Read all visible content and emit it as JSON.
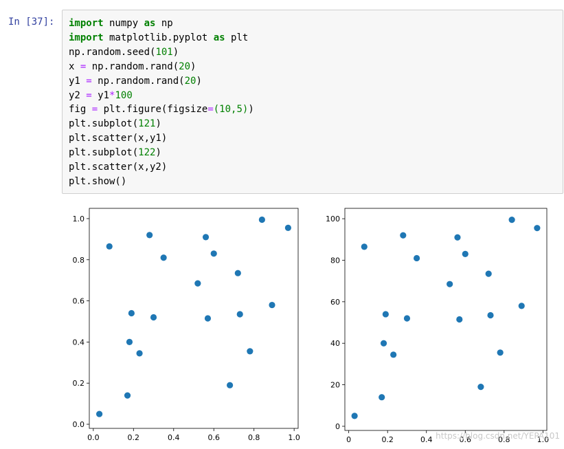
{
  "cell": {
    "prompt": "In [37]:",
    "code_lines": [
      [
        {
          "t": "import",
          "c": "kw"
        },
        {
          "t": " numpy ",
          "c": "plain"
        },
        {
          "t": "as",
          "c": "kw"
        },
        {
          "t": " np",
          "c": "plain"
        }
      ],
      [
        {
          "t": "import",
          "c": "kw"
        },
        {
          "t": " matplotlib.pyplot ",
          "c": "plain"
        },
        {
          "t": "as",
          "c": "kw"
        },
        {
          "t": " plt",
          "c": "plain"
        }
      ],
      [
        {
          "t": "np.random.seed(",
          "c": "plain"
        },
        {
          "t": "101",
          "c": "num"
        },
        {
          "t": ")",
          "c": "plain"
        }
      ],
      [
        {
          "t": "x ",
          "c": "plain"
        },
        {
          "t": "=",
          "c": "op"
        },
        {
          "t": " np.random.rand(",
          "c": "plain"
        },
        {
          "t": "20",
          "c": "num"
        },
        {
          "t": ")",
          "c": "plain"
        }
      ],
      [
        {
          "t": "y1 ",
          "c": "plain"
        },
        {
          "t": "=",
          "c": "op"
        },
        {
          "t": " np.random.rand(",
          "c": "plain"
        },
        {
          "t": "20",
          "c": "num"
        },
        {
          "t": ")",
          "c": "plain"
        }
      ],
      [
        {
          "t": "y2 ",
          "c": "plain"
        },
        {
          "t": "=",
          "c": "op"
        },
        {
          "t": " y1",
          "c": "plain"
        },
        {
          "t": "*",
          "c": "op"
        },
        {
          "t": "100",
          "c": "num"
        }
      ],
      [
        {
          "t": "fig ",
          "c": "plain"
        },
        {
          "t": "=",
          "c": "op"
        },
        {
          "t": " plt.figure(figsize",
          "c": "plain"
        },
        {
          "t": "=",
          "c": "op"
        },
        {
          "t": "(10,5)",
          "c": "num"
        },
        {
          "t": ")",
          "c": "plain"
        }
      ],
      [
        {
          "t": "plt.subplot(",
          "c": "plain"
        },
        {
          "t": "121",
          "c": "num"
        },
        {
          "t": ")",
          "c": "plain"
        }
      ],
      [
        {
          "t": "plt.scatter(x,y1)",
          "c": "plain"
        }
      ],
      [
        {
          "t": "plt.subplot(",
          "c": "plain"
        },
        {
          "t": "122",
          "c": "num"
        },
        {
          "t": ")",
          "c": "plain"
        }
      ],
      [
        {
          "t": "plt.scatter(x,y2)",
          "c": "plain"
        }
      ],
      [
        {
          "t": "plt.show()",
          "c": "plain"
        }
      ]
    ]
  },
  "colors": {
    "kw": "#008000",
    "plain": "#000000",
    "num": "#008000",
    "op": "#aa22ff",
    "marker": "#1f77b4",
    "prompt": "#303f9f"
  },
  "watermark": "https://blog.csdn.net/YEPA101",
  "chart_data": [
    {
      "type": "scatter",
      "title": "",
      "xlabel": "",
      "ylabel": "",
      "xlim": [
        -0.02,
        1.02
      ],
      "ylim": [
        -0.02,
        1.05
      ],
      "xticks": [
        0.0,
        0.2,
        0.4,
        0.6,
        0.8,
        1.0
      ],
      "xtick_labels": [
        "0.0",
        "0.2",
        "0.4",
        "0.6",
        "0.8",
        "1.0"
      ],
      "yticks": [
        0.0,
        0.2,
        0.4,
        0.6,
        0.8,
        1.0
      ],
      "ytick_labels": [
        "0.0",
        "0.2",
        "0.4",
        "0.6",
        "0.8",
        "1.0"
      ],
      "grid": false,
      "x": [
        0.03,
        0.08,
        0.17,
        0.18,
        0.19,
        0.23,
        0.28,
        0.3,
        0.35,
        0.52,
        0.56,
        0.57,
        0.6,
        0.68,
        0.72,
        0.73,
        0.78,
        0.84,
        0.89,
        0.97
      ],
      "y": [
        0.05,
        0.865,
        0.14,
        0.4,
        0.54,
        0.345,
        0.92,
        0.52,
        0.81,
        0.685,
        0.91,
        0.515,
        0.83,
        0.19,
        0.735,
        0.535,
        0.355,
        0.995,
        0.58,
        0.955
      ]
    },
    {
      "type": "scatter",
      "title": "",
      "xlabel": "",
      "ylabel": "",
      "xlim": [
        -0.02,
        1.02
      ],
      "ylim": [
        -2,
        105
      ],
      "xticks": [
        0.0,
        0.2,
        0.4,
        0.6,
        0.8,
        1.0
      ],
      "xtick_labels": [
        "0",
        "0.2",
        "0.4",
        "0.6",
        "0.8",
        "1.0"
      ],
      "yticks": [
        0,
        20,
        40,
        60,
        80,
        100
      ],
      "ytick_labels": [
        "0",
        "20",
        "40",
        "60",
        "80",
        "100"
      ],
      "grid": false,
      "x": [
        0.03,
        0.08,
        0.17,
        0.18,
        0.19,
        0.23,
        0.28,
        0.3,
        0.35,
        0.52,
        0.56,
        0.57,
        0.6,
        0.68,
        0.72,
        0.73,
        0.78,
        0.84,
        0.89,
        0.97
      ],
      "y": [
        5,
        86.5,
        14,
        40,
        54,
        34.5,
        92,
        52,
        81,
        68.5,
        91,
        51.5,
        83,
        19,
        73.5,
        53.5,
        35.5,
        99.5,
        58,
        95.5
      ]
    }
  ]
}
